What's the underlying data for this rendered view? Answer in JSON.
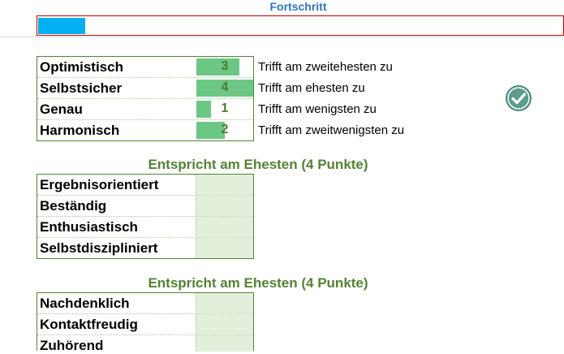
{
  "progress": {
    "title": "Fortschritt",
    "value_fraction": 0.09,
    "fill_color": "#00b0f0"
  },
  "ranking": {
    "items": [
      {
        "word": "Optimistisch",
        "points": "3",
        "bar_fraction": 0.75,
        "description": "Trifft am zweitehesten zu"
      },
      {
        "word": "Selbstsicher",
        "points": "4",
        "bar_fraction": 1.0,
        "description": "Trifft am ehesten zu"
      },
      {
        "word": "Genau",
        "points": "1",
        "bar_fraction": 0.25,
        "description": "Trifft am wenigsten zu"
      },
      {
        "word": "Harmonisch",
        "points": "2",
        "bar_fraction": 0.5,
        "description": "Trifft am zweitwenigsten zu"
      }
    ],
    "status_icon": "check-circle-icon",
    "bar_color": "#6cc785"
  },
  "groups": [
    {
      "heading": "Entspricht am Ehesten (4 Punkte)",
      "words": [
        "Ergebnisorientiert",
        "Beständig",
        "Enthusiastisch",
        "Selbstdiszipliniert"
      ]
    },
    {
      "heading": "Entspricht am Ehesten (4 Punkte)",
      "words": [
        "Nachdenklich",
        "Kontaktfreudig",
        "Zuhörend"
      ]
    }
  ]
}
